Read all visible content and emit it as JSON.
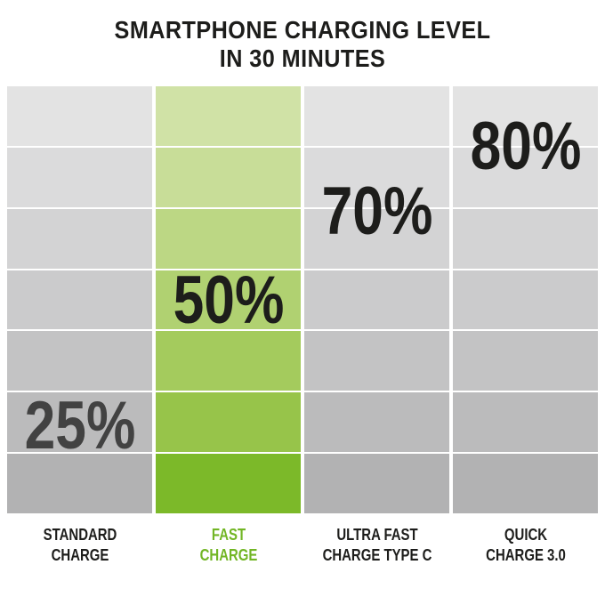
{
  "title": {
    "line1": "SMARTPHONE CHARGING LEVEL",
    "line2": "IN 30 MINUTES"
  },
  "chart_data": {
    "type": "bar",
    "title": "SMARTPHONE CHARGING LEVEL IN 30 MINUTES",
    "categories": [
      "STANDARD CHARGE",
      "FAST CHARGE",
      "ULTRA FAST CHARGE TYPE C",
      "QUICK CHARGE 3.0"
    ],
    "values": [
      25,
      50,
      70,
      80
    ],
    "unit": "%",
    "ylim": [
      0,
      100
    ],
    "grid": "7 horizontal shaded bands per column, light at top to dark at bottom",
    "legend_position": "none",
    "highlighted_category": "FAST CHARGE",
    "columns": [
      {
        "category_lines": [
          "STANDARD",
          "CHARGE"
        ],
        "value": 25,
        "value_label": "25%",
        "palette": "gray",
        "category_color": "#1d1d1b",
        "value_color": "#424242"
      },
      {
        "category_lines": [
          "FAST",
          "CHARGE"
        ],
        "value": 50,
        "value_label": "50%",
        "palette": "green",
        "category_color": "#72b625",
        "value_color": "#1d1d1b"
      },
      {
        "category_lines": [
          "ULTRA FAST",
          "CHARGE TYPE C"
        ],
        "value": 70,
        "value_label": "70%",
        "palette": "gray",
        "category_color": "#1d1d1b",
        "value_color": "#1d1d1b"
      },
      {
        "category_lines": [
          "QUICK",
          "CHARGE 3.0"
        ],
        "value": 80,
        "value_label": "80%",
        "palette": "gray",
        "category_color": "#1d1d1b",
        "value_color": "#1d1d1b"
      }
    ]
  },
  "colors": {
    "background": "#ffffff",
    "title_text": "#1d1d1b",
    "accent_green": "#72b625",
    "gray_ramp": [
      "#e3e3e3",
      "#dbdbdc",
      "#d3d3d4",
      "#cbcbcc",
      "#c3c3c4",
      "#bbbbbc",
      "#b2b2b3"
    ],
    "green_ramp": [
      "#d0e2a6",
      "#c8dd98",
      "#bcd784",
      "#b0d171",
      "#a4cb5d",
      "#97c44a",
      "#7cb929"
    ]
  }
}
